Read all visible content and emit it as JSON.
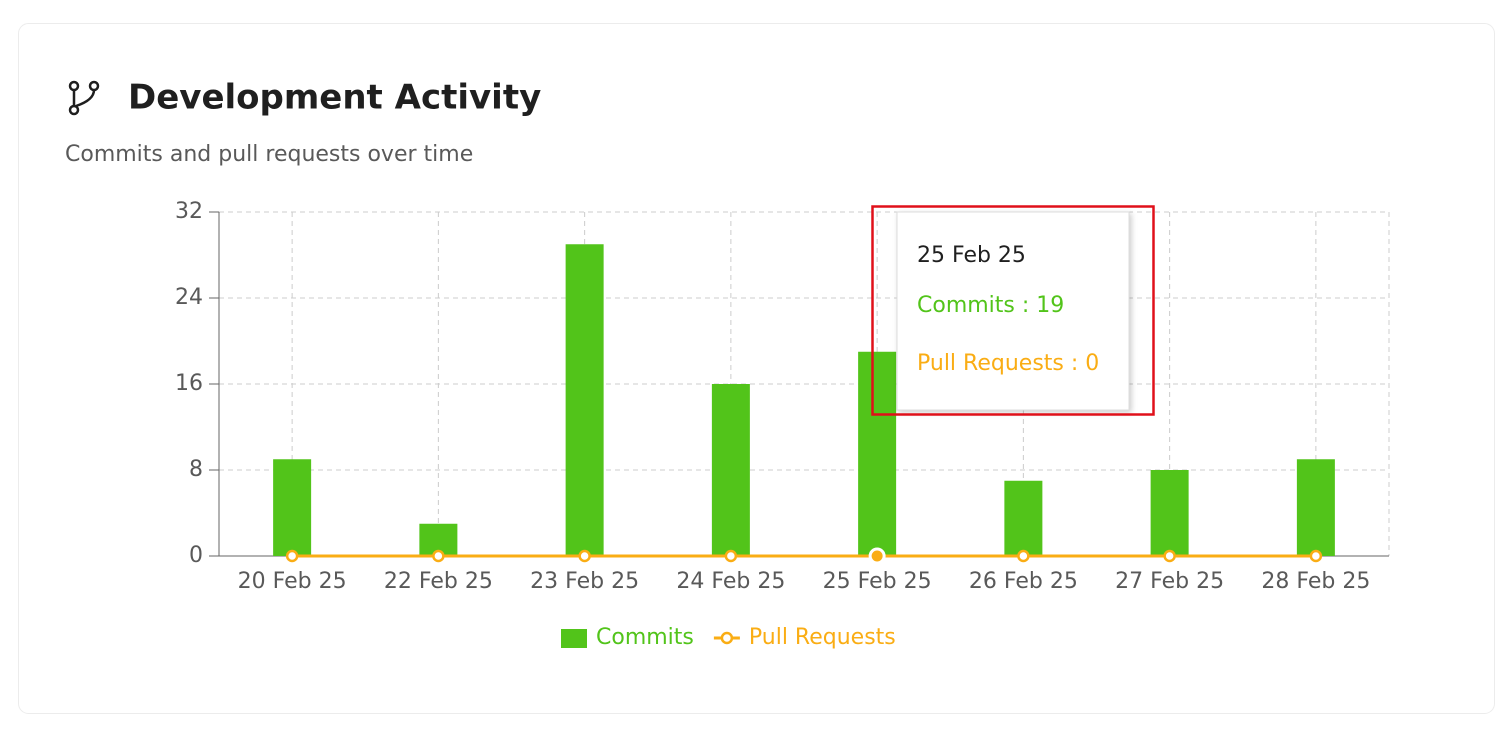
{
  "header": {
    "title": "Development Activity",
    "subtitle": "Commits and pull requests over time"
  },
  "chart_data": {
    "type": "bar-line",
    "categories": [
      "20 Feb 25",
      "22 Feb 25",
      "23 Feb 25",
      "24 Feb 25",
      "25 Feb 25",
      "26 Feb 25",
      "27 Feb 25",
      "28 Feb 25"
    ],
    "series": [
      {
        "name": "Commits",
        "type": "bar",
        "color": "#52c41a",
        "values": [
          9,
          3,
          29,
          16,
          19,
          7,
          8,
          9
        ]
      },
      {
        "name": "Pull Requests",
        "type": "line",
        "color": "#faad14",
        "values": [
          0,
          0,
          0,
          0,
          0,
          0,
          0,
          0
        ]
      }
    ],
    "ylim": [
      0,
      32
    ],
    "yticks": [
      0,
      8,
      16,
      24,
      32
    ],
    "grid": true,
    "legend": "bottom",
    "tooltip": {
      "title": "25 Feb 25",
      "rows": [
        "Commits : 19",
        "Pull Requests : 0"
      ],
      "active_index": 4
    }
  }
}
